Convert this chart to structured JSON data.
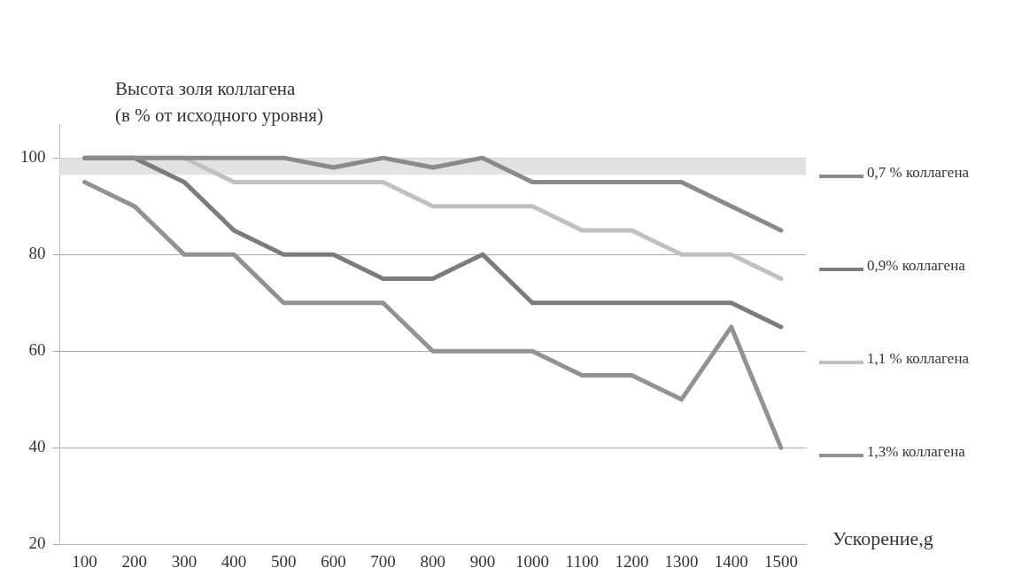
{
  "chart_data": {
    "type": "line",
    "ylabel": "Высота золя коллагена\n(в % от исходного уровня)",
    "xlabel": "Ускорение,g",
    "categories": [
      "100",
      "200",
      "300",
      "400",
      "500",
      "600",
      "700",
      "800",
      "900",
      "1000",
      "1100",
      "1200",
      "1300",
      "1400",
      "1500"
    ],
    "series": [
      {
        "name": "0,7 % коллагена",
        "color": "#8a8a8a",
        "values": [
          100,
          100,
          100,
          100,
          100,
          98,
          100,
          98,
          100,
          95,
          95,
          95,
          95,
          90,
          85
        ]
      },
      {
        "name": "0,9% коллагена",
        "color": "#7c7c7c",
        "values": [
          100,
          100,
          95,
          85,
          80,
          80,
          75,
          75,
          80,
          70,
          70,
          70,
          70,
          70,
          65
        ]
      },
      {
        "name": "1,1 % коллагена",
        "color": "#c0c0c0",
        "values": [
          100,
          100,
          100,
          95,
          95,
          95,
          95,
          90,
          90,
          90,
          85,
          85,
          80,
          80,
          75
        ]
      },
      {
        "name": "1,3% коллагена",
        "color": "#929292",
        "values": [
          95,
          90,
          80,
          80,
          70,
          70,
          70,
          60,
          60,
          60,
          55,
          55,
          50,
          65,
          40
        ]
      }
    ],
    "ylim": [
      20,
      107
    ],
    "yticks": [
      20,
      40,
      60,
      80,
      100
    ],
    "grid": "y",
    "legend": "right",
    "marker": "none",
    "line_style": "solid",
    "bands": [
      {
        "axis": "y",
        "from": 96.5,
        "to": 100,
        "color": "#e2e2e2"
      }
    ]
  }
}
